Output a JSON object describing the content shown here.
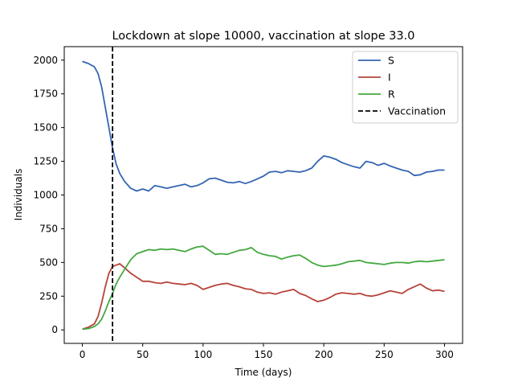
{
  "chart_data": {
    "type": "line",
    "title": "Lockdown at slope 10000, vaccination at slope 33.0",
    "xlabel": "Time (days)",
    "ylabel": "Individuals",
    "xlim": [
      -15,
      315
    ],
    "ylim": [
      -100,
      2100
    ],
    "x_ticks": [
      0,
      50,
      100,
      150,
      200,
      250,
      300
    ],
    "y_ticks": [
      0,
      250,
      500,
      750,
      1000,
      1250,
      1500,
      1750,
      2000
    ],
    "grid": false,
    "legend_position": "top-right",
    "series": [
      {
        "name": "S",
        "color": "#3465b0",
        "x": [
          0,
          5,
          10,
          13,
          16,
          19,
          22,
          25,
          28,
          31,
          35,
          40,
          45,
          50,
          55,
          60,
          65,
          70,
          75,
          80,
          85,
          90,
          95,
          100,
          105,
          110,
          115,
          120,
          125,
          130,
          135,
          140,
          145,
          150,
          155,
          160,
          165,
          170,
          175,
          180,
          185,
          190,
          195,
          200,
          205,
          210,
          215,
          220,
          225,
          230,
          235,
          240,
          245,
          250,
          255,
          260,
          265,
          270,
          275,
          280,
          285,
          290,
          295,
          300
        ],
        "y": [
          1990,
          1975,
          1950,
          1900,
          1800,
          1650,
          1500,
          1350,
          1230,
          1160,
          1100,
          1050,
          1030,
          1045,
          1030,
          1070,
          1060,
          1050,
          1060,
          1070,
          1080,
          1060,
          1070,
          1090,
          1120,
          1125,
          1110,
          1095,
          1090,
          1100,
          1085,
          1100,
          1120,
          1140,
          1170,
          1175,
          1165,
          1180,
          1175,
          1170,
          1180,
          1200,
          1250,
          1290,
          1280,
          1265,
          1240,
          1225,
          1210,
          1200,
          1250,
          1240,
          1220,
          1235,
          1215,
          1200,
          1185,
          1175,
          1145,
          1150,
          1170,
          1175,
          1185,
          1185
        ]
      },
      {
        "name": "I",
        "color": "#b5443a",
        "x": [
          0,
          5,
          10,
          13,
          16,
          19,
          22,
          25,
          28,
          31,
          35,
          40,
          45,
          50,
          55,
          60,
          65,
          70,
          75,
          80,
          85,
          90,
          95,
          100,
          105,
          110,
          115,
          120,
          125,
          130,
          135,
          140,
          145,
          150,
          155,
          160,
          165,
          170,
          175,
          180,
          185,
          190,
          195,
          200,
          205,
          210,
          215,
          220,
          225,
          230,
          235,
          240,
          245,
          250,
          255,
          260,
          265,
          270,
          275,
          280,
          285,
          290,
          295,
          300
        ],
        "y": [
          5,
          20,
          45,
          100,
          200,
          320,
          420,
          470,
          480,
          490,
          460,
          420,
          390,
          360,
          360,
          350,
          345,
          355,
          345,
          340,
          335,
          345,
          330,
          300,
          315,
          330,
          340,
          345,
          330,
          320,
          305,
          300,
          280,
          270,
          275,
          265,
          280,
          290,
          300,
          270,
          255,
          230,
          210,
          220,
          240,
          265,
          275,
          270,
          265,
          270,
          255,
          250,
          260,
          275,
          290,
          280,
          270,
          300,
          320,
          340,
          310,
          290,
          295,
          285
        ]
      },
      {
        "name": "R",
        "color": "#44a840",
        "x": [
          0,
          5,
          10,
          13,
          16,
          19,
          22,
          25,
          28,
          31,
          35,
          40,
          45,
          50,
          55,
          60,
          65,
          70,
          75,
          80,
          85,
          90,
          95,
          100,
          105,
          110,
          115,
          120,
          125,
          130,
          135,
          140,
          145,
          150,
          155,
          160,
          165,
          170,
          175,
          180,
          185,
          190,
          195,
          200,
          205,
          210,
          215,
          220,
          225,
          230,
          235,
          240,
          245,
          250,
          255,
          260,
          265,
          270,
          275,
          280,
          285,
          290,
          295,
          300
        ],
        "y": [
          5,
          10,
          25,
          45,
          80,
          140,
          210,
          270,
          340,
          390,
          450,
          520,
          565,
          580,
          595,
          590,
          600,
          595,
          600,
          590,
          580,
          600,
          615,
          620,
          590,
          560,
          565,
          560,
          575,
          590,
          595,
          610,
          575,
          560,
          550,
          545,
          525,
          540,
          550,
          555,
          530,
          500,
          480,
          470,
          475,
          480,
          490,
          505,
          510,
          515,
          500,
          495,
          490,
          485,
          495,
          500,
          500,
          495,
          505,
          510,
          505,
          510,
          515,
          520
        ]
      }
    ],
    "vline": {
      "name": "Vaccination",
      "x": 25,
      "color": "#000000",
      "style": "dashed"
    }
  }
}
